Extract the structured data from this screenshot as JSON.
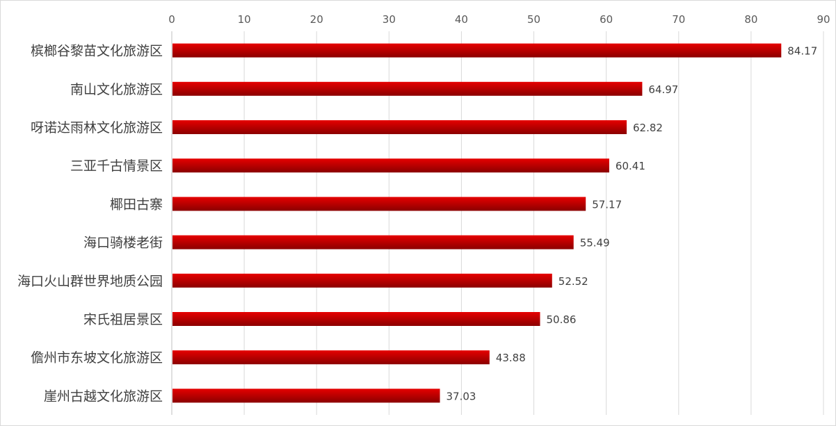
{
  "chart_data": {
    "type": "bar",
    "orientation": "horizontal",
    "x_axis_position": "top",
    "xlim": [
      0,
      90
    ],
    "ticks": [
      0,
      10,
      20,
      30,
      40,
      50,
      60,
      70,
      80,
      90
    ],
    "grid": true,
    "legend": "none",
    "bar_color": "#c00000",
    "bar_gradient": [
      "#e60000",
      "#8b0000"
    ],
    "categories": [
      "槟榔谷黎苗文化旅游区",
      "南山文化旅游区",
      "呀诺达雨林文化旅游区",
      "三亚千古情景区",
      "椰田古寨",
      "海口骑楼老街",
      "海口火山群世界地质公园",
      "宋氏祖居景区",
      "儋州市东坡文化旅游区",
      "崖州古越文化旅游区"
    ],
    "values": [
      84.17,
      64.97,
      62.82,
      60.41,
      57.17,
      55.49,
      52.52,
      50.86,
      43.88,
      37.03
    ],
    "value_labels": [
      "84.17",
      "64.97",
      "62.82",
      "60.41",
      "57.17",
      "55.49",
      "52.52",
      "50.86",
      "43.88",
      "37.03"
    ]
  }
}
